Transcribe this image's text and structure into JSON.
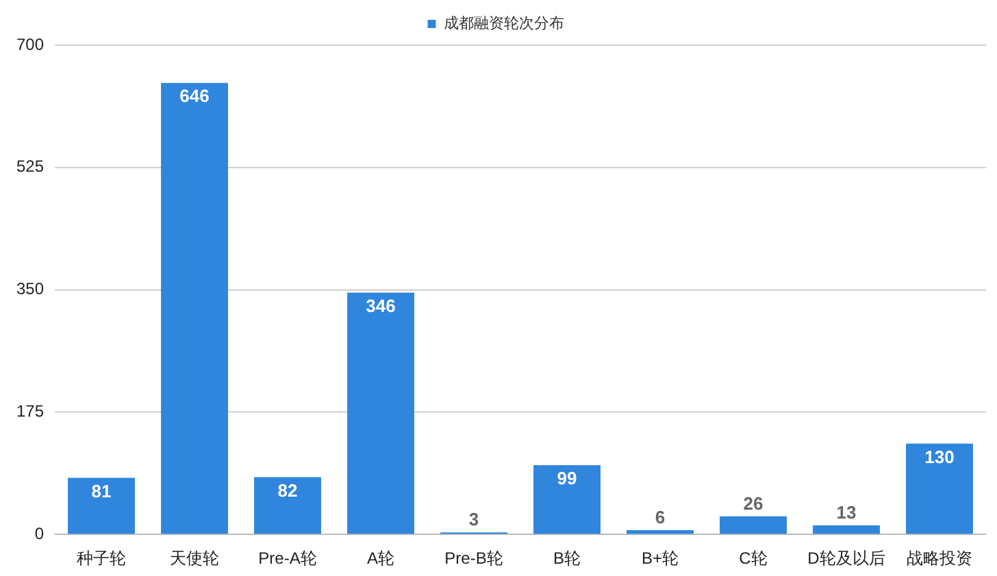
{
  "chart_data": {
    "type": "bar",
    "categories": [
      "种子轮",
      "天使轮",
      "Pre-A轮",
      "A轮",
      "Pre-B轮",
      "B轮",
      "B+轮",
      "C轮",
      "D轮及以后",
      "战略投资"
    ],
    "series": [
      {
        "name": "成都融资轮次分布",
        "color": "#2f86dc",
        "values": [
          81,
          646,
          82,
          346,
          3,
          99,
          6,
          26,
          13,
          130
        ]
      }
    ],
    "ylim": [
      0,
      700
    ],
    "yticks": [
      0,
      175,
      350,
      525,
      700
    ],
    "grid": "y",
    "legend": "top",
    "data_labels": true
  }
}
